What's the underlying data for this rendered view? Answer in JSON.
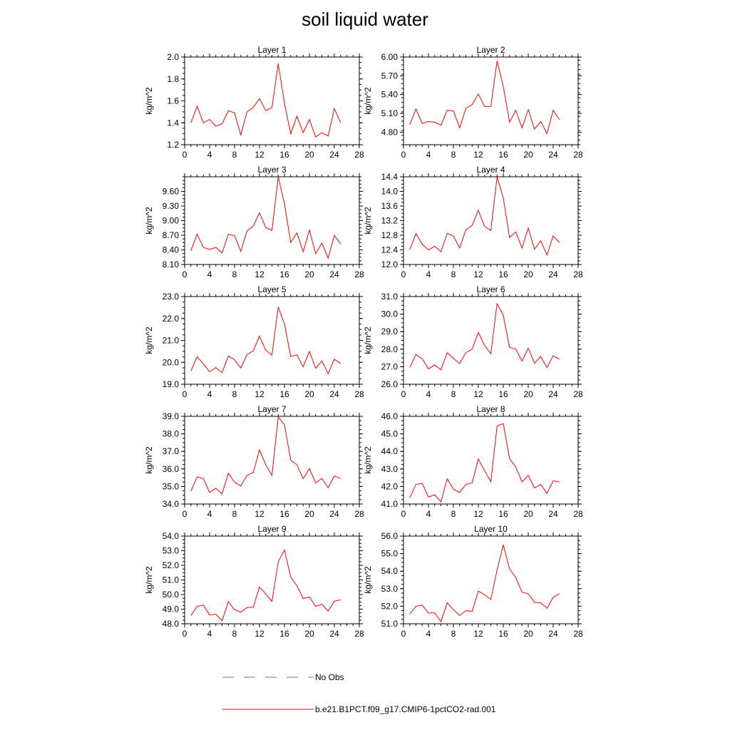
{
  "title": "soil liquid water",
  "ylabel": "kg/m^2",
  "line_color": "#ff0000",
  "obs_color": "#6a6ad8",
  "legend": {
    "obs_label": "No Obs",
    "model_label": "b.e21.B1PCT.f09_g17.CMIP6-1pctCO2-rad.001"
  },
  "chart_data": [
    {
      "type": "line",
      "title": "Layer 1",
      "ylabel": "kg/m^2",
      "xlim": [
        0,
        28
      ],
      "ylim": [
        1.2,
        2.0
      ],
      "x_ticks": [
        0,
        4,
        8,
        12,
        16,
        20,
        24,
        28
      ],
      "y_ticks": [
        "1.2",
        "1.4",
        "1.6",
        "1.8",
        "2.0"
      ],
      "x": [
        1,
        2,
        3,
        4,
        5,
        6,
        7,
        8,
        9,
        10,
        11,
        12,
        13,
        14,
        15,
        16,
        17,
        18,
        19,
        20,
        21,
        22,
        23,
        24,
        25
      ],
      "values": [
        1.4,
        1.55,
        1.4,
        1.43,
        1.37,
        1.39,
        1.51,
        1.49,
        1.29,
        1.5,
        1.54,
        1.62,
        1.51,
        1.54,
        1.94,
        1.58,
        1.3,
        1.46,
        1.31,
        1.43,
        1.27,
        1.31,
        1.28,
        1.53,
        1.4
      ]
    },
    {
      "type": "line",
      "title": "Layer 2",
      "ylabel": "kg/m^2",
      "xlim": [
        0,
        28
      ],
      "ylim": [
        4.6,
        6.0
      ],
      "x_ticks": [
        0,
        4,
        8,
        12,
        16,
        20,
        24,
        28
      ],
      "y_ticks": [
        "4.80",
        "5.10",
        "5.40",
        "5.70",
        "6.00"
      ],
      "x": [
        1,
        2,
        3,
        4,
        5,
        6,
        7,
        8,
        9,
        10,
        11,
        12,
        13,
        14,
        15,
        16,
        17,
        18,
        19,
        20,
        21,
        22,
        23,
        24,
        25
      ],
      "values": [
        4.92,
        5.17,
        4.94,
        4.97,
        4.96,
        4.91,
        5.15,
        5.14,
        4.87,
        5.18,
        5.24,
        5.41,
        5.21,
        5.21,
        5.94,
        5.53,
        4.96,
        5.15,
        4.87,
        5.16,
        4.85,
        4.97,
        4.78,
        5.15,
        5.0
      ]
    },
    {
      "type": "line",
      "title": "Layer 3",
      "ylabel": "kg/m^2",
      "xlim": [
        0,
        28
      ],
      "ylim": [
        8.1,
        9.9
      ],
      "x_ticks": [
        0,
        4,
        8,
        12,
        16,
        20,
        24,
        28
      ],
      "y_ticks": [
        "8.10",
        "8.40",
        "8.70",
        "9.00",
        "9.30",
        "9.60"
      ],
      "x": [
        1,
        2,
        3,
        4,
        5,
        6,
        7,
        8,
        9,
        10,
        11,
        12,
        13,
        14,
        15,
        16,
        17,
        18,
        19,
        20,
        21,
        22,
        23,
        24,
        25
      ],
      "values": [
        8.38,
        8.72,
        8.45,
        8.41,
        8.45,
        8.34,
        8.72,
        8.69,
        8.37,
        8.79,
        8.89,
        9.16,
        8.86,
        8.8,
        9.9,
        9.35,
        8.55,
        8.75,
        8.36,
        8.81,
        8.32,
        8.54,
        8.23,
        8.7,
        8.52
      ]
    },
    {
      "type": "line",
      "title": "Layer 4",
      "ylabel": "kg/m^2",
      "xlim": [
        0,
        28
      ],
      "ylim": [
        12.0,
        14.4
      ],
      "x_ticks": [
        0,
        4,
        8,
        12,
        16,
        20,
        24,
        28
      ],
      "y_ticks": [
        "12.0",
        "12.4",
        "12.8",
        "13.2",
        "13.6",
        "14.0",
        "14.4"
      ],
      "x": [
        1,
        2,
        3,
        4,
        5,
        6,
        7,
        8,
        9,
        10,
        11,
        12,
        13,
        14,
        15,
        16,
        17,
        18,
        19,
        20,
        21,
        22,
        23,
        24,
        25
      ],
      "values": [
        12.4,
        12.85,
        12.55,
        12.4,
        12.5,
        12.35,
        12.85,
        12.78,
        12.45,
        12.95,
        13.07,
        13.48,
        13.04,
        12.93,
        14.4,
        13.82,
        12.74,
        12.89,
        12.45,
        13.0,
        12.42,
        12.65,
        12.26,
        12.78,
        12.6
      ]
    },
    {
      "type": "line",
      "title": "Layer 5",
      "ylabel": "kg/m^2",
      "xlim": [
        0,
        28
      ],
      "ylim": [
        19.0,
        23.0
      ],
      "x_ticks": [
        0,
        4,
        8,
        12,
        16,
        20,
        24,
        28
      ],
      "y_ticks": [
        "19.0",
        "20.0",
        "21.0",
        "22.0",
        "23.0"
      ],
      "x": [
        1,
        2,
        3,
        4,
        5,
        6,
        7,
        8,
        9,
        10,
        11,
        12,
        13,
        14,
        15,
        16,
        17,
        18,
        19,
        20,
        21,
        22,
        23,
        24,
        25
      ],
      "values": [
        19.6,
        20.26,
        19.93,
        19.57,
        19.76,
        19.53,
        20.29,
        20.12,
        19.74,
        20.35,
        20.53,
        21.2,
        20.55,
        20.33,
        22.52,
        21.76,
        20.27,
        20.34,
        19.8,
        20.5,
        19.73,
        20.06,
        19.48,
        20.14,
        19.95
      ]
    },
    {
      "type": "line",
      "title": "Layer 6",
      "ylabel": "kg/m^2",
      "xlim": [
        0,
        28
      ],
      "ylim": [
        26.0,
        31.0
      ],
      "x_ticks": [
        0,
        4,
        8,
        12,
        16,
        20,
        24,
        28
      ],
      "y_ticks": [
        "26.0",
        "27.0",
        "28.0",
        "29.0",
        "30.0",
        "31.0"
      ],
      "x": [
        1,
        2,
        3,
        4,
        5,
        6,
        7,
        8,
        9,
        10,
        11,
        12,
        13,
        14,
        15,
        16,
        17,
        18,
        19,
        20,
        21,
        22,
        23,
        24,
        25
      ],
      "values": [
        26.95,
        27.7,
        27.45,
        26.88,
        27.1,
        26.82,
        27.8,
        27.48,
        27.18,
        27.8,
        28.0,
        28.96,
        28.2,
        27.74,
        30.6,
        29.92,
        28.1,
        28.0,
        27.32,
        28.05,
        27.2,
        27.58,
        26.96,
        27.63,
        27.43
      ]
    },
    {
      "type": "line",
      "title": "Layer 7",
      "ylabel": "kg/m^2",
      "xlim": [
        0,
        28
      ],
      "ylim": [
        34.0,
        39.0
      ],
      "x_ticks": [
        0,
        4,
        8,
        12,
        16,
        20,
        24,
        28
      ],
      "y_ticks": [
        "34.0",
        "35.0",
        "36.0",
        "37.0",
        "38.0",
        "39.0"
      ],
      "x": [
        1,
        2,
        3,
        4,
        5,
        6,
        7,
        8,
        9,
        10,
        11,
        12,
        13,
        14,
        15,
        16,
        17,
        18,
        19,
        20,
        21,
        22,
        23,
        24,
        25
      ],
      "values": [
        34.73,
        35.55,
        35.45,
        34.66,
        34.9,
        34.58,
        35.76,
        35.25,
        35.03,
        35.63,
        35.8,
        37.08,
        36.23,
        35.64,
        38.96,
        38.53,
        36.5,
        36.24,
        35.44,
        36.03,
        35.2,
        35.46,
        34.93,
        35.6,
        35.45
      ]
    },
    {
      "type": "line",
      "title": "Layer 8",
      "ylabel": "kg/m^2",
      "xlim": [
        0,
        28
      ],
      "ylim": [
        41.0,
        46.0
      ],
      "x_ticks": [
        0,
        4,
        8,
        12,
        16,
        20,
        24,
        28
      ],
      "y_ticks": [
        "41.0",
        "42.0",
        "43.0",
        "44.0",
        "45.0",
        "46.0"
      ],
      "x": [
        1,
        2,
        3,
        4,
        5,
        6,
        7,
        8,
        9,
        10,
        11,
        12,
        13,
        14,
        15,
        16,
        17,
        18,
        19,
        20,
        21,
        22,
        23,
        24,
        25
      ],
      "values": [
        41.35,
        42.12,
        42.17,
        41.4,
        41.53,
        41.12,
        42.44,
        41.85,
        41.66,
        42.12,
        42.2,
        43.57,
        42.9,
        42.27,
        45.45,
        45.58,
        43.6,
        43.11,
        42.26,
        42.63,
        41.92,
        42.12,
        41.6,
        42.33,
        42.25
      ]
    },
    {
      "type": "line",
      "title": "Layer 9",
      "ylabel": "kg/m^2",
      "xlim": [
        0,
        28
      ],
      "ylim": [
        48.0,
        54.0
      ],
      "x_ticks": [
        0,
        4,
        8,
        12,
        16,
        20,
        24,
        28
      ],
      "y_ticks": [
        "48.0",
        "49.0",
        "50.0",
        "51.0",
        "52.0",
        "53.0",
        "54.0"
      ],
      "x": [
        1,
        2,
        3,
        4,
        5,
        6,
        7,
        8,
        9,
        10,
        11,
        12,
        13,
        14,
        15,
        16,
        17,
        18,
        19,
        20,
        21,
        22,
        23,
        24,
        25
      ],
      "values": [
        48.56,
        49.19,
        49.28,
        48.6,
        48.66,
        48.2,
        49.51,
        48.97,
        48.79,
        49.11,
        49.14,
        50.51,
        50.04,
        49.53,
        52.24,
        53.05,
        51.19,
        50.61,
        49.73,
        49.83,
        49.19,
        49.34,
        48.87,
        49.55,
        49.64
      ]
    },
    {
      "type": "line",
      "title": "Layer 10",
      "ylabel": "kg/m^2",
      "xlim": [
        0,
        28
      ],
      "ylim": [
        51.0,
        56.0
      ],
      "x_ticks": [
        0,
        4,
        8,
        12,
        16,
        20,
        24,
        28
      ],
      "y_ticks": [
        "51.0",
        "52.0",
        "53.0",
        "54.0",
        "55.0",
        "56.0"
      ],
      "x": [
        1,
        2,
        3,
        4,
        5,
        6,
        7,
        8,
        9,
        10,
        11,
        12,
        13,
        14,
        15,
        16,
        17,
        18,
        19,
        20,
        21,
        22,
        23,
        24,
        25
      ],
      "values": [
        51.55,
        52.0,
        52.06,
        51.61,
        51.63,
        51.12,
        52.19,
        51.81,
        51.47,
        51.75,
        51.7,
        52.87,
        52.65,
        52.39,
        54.07,
        55.5,
        54.12,
        53.64,
        52.8,
        52.71,
        52.22,
        52.19,
        51.89,
        52.51,
        52.72
      ]
    }
  ]
}
